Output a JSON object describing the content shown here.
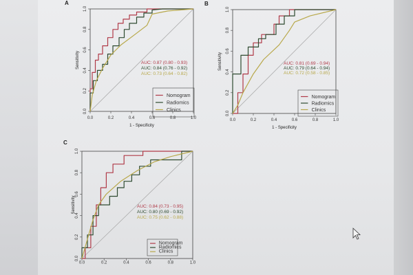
{
  "colors": {
    "Nomogram": "#b03a48",
    "Radiomics": "#2e4a30",
    "Clinics": "#b8a84a",
    "reference": "#aaaaaa"
  },
  "chart_data": [
    {
      "type": "line",
      "panel": "A",
      "xlabel": "1 - Specificity",
      "ylabel": "Sensitivity",
      "xlim": [
        0,
        1
      ],
      "ylim": [
        0,
        1
      ],
      "xticks": [
        "0.0",
        "0.2",
        "0.4",
        "0.6",
        "0.8",
        "1.0"
      ],
      "yticks": [
        "0.0",
        "0.2",
        "0.4",
        "0.6",
        "0.8",
        "1.0"
      ],
      "legend_position": "bottom-right",
      "auc_labels": [
        {
          "series": "Nomogram",
          "text": "AUC: 0.87 (0.80 - 0.93)"
        },
        {
          "series": "Radiomics",
          "text": "AUC: 0.84 (0.76 - 0.92)"
        },
        {
          "series": "Clinics",
          "text": "AUC: 0.73 (0.64 - 0.82)"
        }
      ],
      "series": [
        {
          "name": "Nomogram",
          "x": [
            0,
            0,
            0.02,
            0.02,
            0.05,
            0.05,
            0.08,
            0.08,
            0.12,
            0.12,
            0.17,
            0.17,
            0.22,
            0.22,
            0.27,
            0.27,
            0.32,
            0.32,
            0.38,
            0.38,
            0.45,
            0.45,
            0.55,
            0.55,
            0.65,
            1.0
          ],
          "y": [
            0,
            0.22,
            0.22,
            0.38,
            0.38,
            0.5,
            0.5,
            0.56,
            0.56,
            0.64,
            0.64,
            0.72,
            0.72,
            0.8,
            0.8,
            0.86,
            0.86,
            0.9,
            0.9,
            0.94,
            0.94,
            0.97,
            0.97,
            1.0,
            1.0,
            1.0
          ]
        },
        {
          "name": "Radiomics",
          "x": [
            0,
            0,
            0.03,
            0.03,
            0.07,
            0.07,
            0.12,
            0.12,
            0.17,
            0.17,
            0.22,
            0.22,
            0.28,
            0.28,
            0.33,
            0.33,
            0.38,
            0.38,
            0.45,
            0.45,
            0.52,
            0.52,
            0.6,
            0.6,
            0.7,
            1.0
          ],
          "y": [
            0,
            0.18,
            0.18,
            0.3,
            0.3,
            0.4,
            0.4,
            0.46,
            0.46,
            0.56,
            0.56,
            0.64,
            0.64,
            0.72,
            0.72,
            0.8,
            0.8,
            0.86,
            0.86,
            0.92,
            0.92,
            0.96,
            0.96,
            0.99,
            1.0,
            1.0
          ]
        },
        {
          "name": "Clinics",
          "x": [
            0,
            0.02,
            0.06,
            0.12,
            0.2,
            0.3,
            0.42,
            0.55,
            0.6,
            0.75,
            1.0
          ],
          "y": [
            0,
            0.16,
            0.3,
            0.42,
            0.55,
            0.65,
            0.74,
            0.84,
            0.95,
            0.98,
            1.0
          ]
        }
      ]
    },
    {
      "type": "line",
      "panel": "B",
      "xlabel": "1 - Specificity",
      "ylabel": "Sensitivity",
      "xlim": [
        0,
        1
      ],
      "ylim": [
        0,
        1
      ],
      "xticks": [
        "0.0",
        "0.2",
        "0.4",
        "0.6",
        "0.8",
        "1.0"
      ],
      "yticks": [
        "0.0",
        "0.2",
        "0.4",
        "0.6",
        "0.8",
        "1.0"
      ],
      "legend_position": "bottom-right",
      "auc_labels": [
        {
          "series": "Nomogram",
          "text": "AUC: 0.81 (0.69 - 0.94)"
        },
        {
          "series": "Radiomics",
          "text": "AUC: 0.79 (0.64 - 0.94)"
        },
        {
          "series": "Clinics",
          "text": "AUC: 0.72 (0.58 - 0.85)"
        }
      ],
      "series": [
        {
          "name": "Nomogram",
          "x": [
            0,
            0.05,
            0.05,
            0.1,
            0.1,
            0.15,
            0.15,
            0.2,
            0.2,
            0.28,
            0.28,
            0.4,
            0.4,
            0.45,
            0.45,
            0.55,
            0.55,
            0.6,
            0.6,
            1.0
          ],
          "y": [
            0,
            0,
            0.2,
            0.2,
            0.38,
            0.38,
            0.56,
            0.56,
            0.68,
            0.68,
            0.76,
            0.76,
            0.86,
            0.86,
            0.94,
            0.94,
            1.0,
            1.0,
            1.0,
            1.0
          ]
        },
        {
          "name": "Radiomics",
          "x": [
            0,
            0,
            0.08,
            0.08,
            0.15,
            0.15,
            0.25,
            0.25,
            0.32,
            0.32,
            0.42,
            0.42,
            0.5,
            0.5,
            0.6,
            0.6,
            1.0
          ],
          "y": [
            0,
            0.38,
            0.38,
            0.56,
            0.56,
            0.64,
            0.64,
            0.72,
            0.72,
            0.76,
            0.76,
            0.86,
            0.86,
            0.94,
            0.94,
            1.0,
            1.0
          ]
        },
        {
          "name": "Clinics",
          "x": [
            0,
            0.05,
            0.1,
            0.2,
            0.3,
            0.45,
            0.55,
            0.6,
            0.75,
            1.0
          ],
          "y": [
            0,
            0.08,
            0.2,
            0.38,
            0.52,
            0.66,
            0.8,
            0.88,
            0.94,
            1.0
          ]
        }
      ]
    },
    {
      "type": "line",
      "panel": "C",
      "xlabel": "",
      "ylabel": "Sensitivity",
      "xlim": [
        0,
        1
      ],
      "ylim": [
        0,
        1
      ],
      "xticks": [
        "0.0",
        "0.2",
        "0.4",
        "0.6",
        "0.8",
        "1.0"
      ],
      "yticks": [
        "0.0",
        "0.2",
        "0.4",
        "0.6",
        "0.8",
        "1.0"
      ],
      "legend_position": "bottom-right",
      "auc_labels": [
        {
          "series": "Nomogram",
          "text": "AUC: 0.84 (0.73 - 0.95)"
        },
        {
          "series": "Radiomics",
          "text": "AUC: 0.80 (0.69 - 0.92)"
        },
        {
          "series": "Clinics",
          "text": "AUC: 0.75 (0.62 - 0.88)"
        }
      ],
      "series": [
        {
          "name": "Nomogram",
          "x": [
            0,
            0.03,
            0.03,
            0.08,
            0.08,
            0.13,
            0.13,
            0.17,
            0.17,
            0.22,
            0.22,
            0.28,
            0.28,
            0.38,
            0.38,
            0.55,
            0.55,
            0.62,
            0.62,
            1.0
          ],
          "y": [
            0,
            0,
            0.1,
            0.1,
            0.3,
            0.3,
            0.5,
            0.5,
            0.66,
            0.66,
            0.8,
            0.8,
            0.88,
            0.88,
            0.96,
            0.96,
            1.0,
            1.0,
            1.0,
            1.0
          ]
        },
        {
          "name": "Radiomics",
          "x": [
            0,
            0,
            0.05,
            0.05,
            0.1,
            0.1,
            0.15,
            0.15,
            0.25,
            0.25,
            0.32,
            0.32,
            0.38,
            0.38,
            0.45,
            0.45,
            0.52,
            0.52,
            0.62,
            0.62,
            0.75,
            0.75,
            0.9,
            0.9,
            1.0
          ],
          "y": [
            0,
            0.1,
            0.1,
            0.22,
            0.22,
            0.4,
            0.4,
            0.5,
            0.5,
            0.58,
            0.58,
            0.66,
            0.66,
            0.72,
            0.72,
            0.78,
            0.78,
            0.86,
            0.86,
            0.92,
            0.92,
            0.92,
            0.92,
            1.0,
            1.0
          ]
        },
        {
          "name": "Clinics",
          "x": [
            0,
            0.05,
            0.1,
            0.15,
            0.22,
            0.35,
            0.5,
            0.65,
            0.8,
            1.0
          ],
          "y": [
            0,
            0.18,
            0.36,
            0.5,
            0.6,
            0.72,
            0.82,
            0.9,
            0.95,
            1.0
          ]
        }
      ]
    }
  ]
}
